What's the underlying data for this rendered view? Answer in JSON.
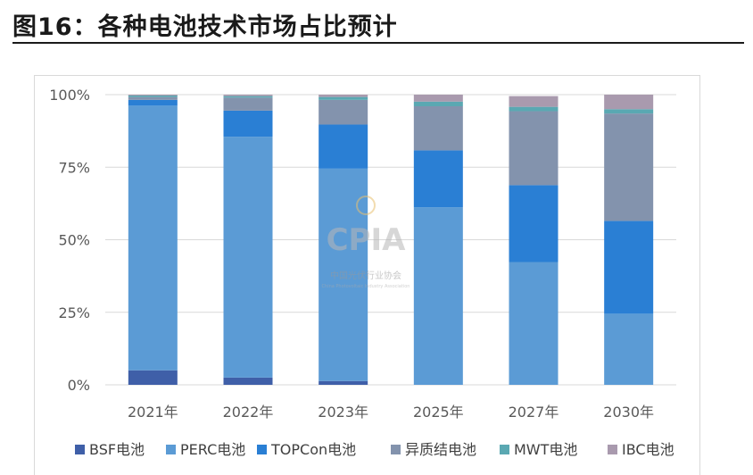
{
  "page_title": "图16：各种电池技术市场占比预计",
  "colors": {
    "BSF电池": "#3f5fa8",
    "PERC电池": "#5b9bd5",
    "TOPCon电池": "#2a7fd4",
    "异质结电池": "#8393ad",
    "MWT电池": "#5aa8b2",
    "IBC电池": "#a99aae"
  },
  "watermark": {
    "logo": "CPIA",
    "org": "中国光伏行业协会",
    "org_en": "China Photovoltaic Industry Association"
  },
  "chart_data": {
    "type": "bar",
    "stacked": true,
    "categories": [
      "2021年",
      "2022年",
      "2023年",
      "2025年",
      "2027年",
      "2030年"
    ],
    "y_ticks": [
      "0%",
      "25%",
      "50%",
      "75%",
      "100%"
    ],
    "ylim": [
      0,
      100
    ],
    "grid": true,
    "legend_position": "bottom",
    "series": [
      {
        "name": "BSF电池",
        "values": [
          5,
          2.5,
          1.3,
          0,
          0,
          0
        ]
      },
      {
        "name": "PERC电池",
        "values": [
          91.2,
          83,
          73.2,
          61.2,
          42.3,
          24.5
        ]
      },
      {
        "name": "TOPCon电池",
        "values": [
          2,
          9,
          15.2,
          19.6,
          26.5,
          32
        ]
      },
      {
        "name": "异质结电池",
        "values": [
          1,
          4.5,
          8.5,
          15.2,
          25.5,
          37
        ]
      },
      {
        "name": "MWT电池",
        "values": [
          0.5,
          0.5,
          1.0,
          1.6,
          1.5,
          1.5
        ]
      },
      {
        "name": "IBC电池",
        "values": [
          0.3,
          0.5,
          0.8,
          2.4,
          3.7,
          5
        ]
      }
    ]
  }
}
